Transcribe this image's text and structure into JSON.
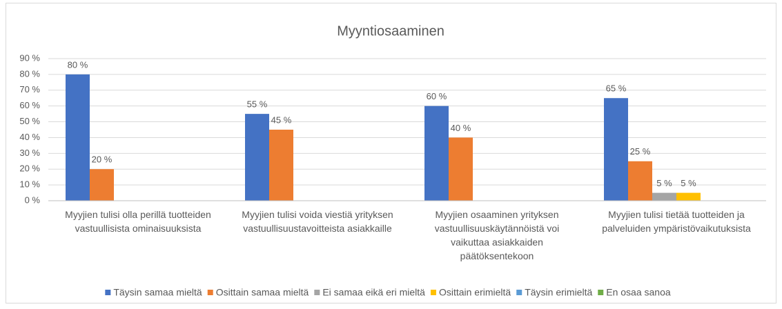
{
  "chart_data": {
    "type": "bar",
    "title": "Myyntiosaaminen",
    "categories": [
      "Myyjien tulisi olla perillä tuotteiden vastuullisista ominaisuuksista",
      "Myyjien tulisi voida viestiä yrityksen vastuullisuustavoitteista asiakkaille",
      "Myyjien osaaminen yrityksen vastuullisuuskäytännöistä voi vaikuttaa asiakkaiden päätöksentekoon",
      "Myyjien tulisi tietää tuotteiden ja palveluiden ympäristövaikutuksista"
    ],
    "series": [
      {
        "name": "Täysin samaa mieltä",
        "color": "#4472c4",
        "values": [
          80,
          55,
          60,
          65
        ],
        "value_labels": [
          "80 %",
          "55 %",
          "60 %",
          "65 %"
        ]
      },
      {
        "name": "Osittain samaa mieltä",
        "color": "#ed7d31",
        "values": [
          20,
          45,
          40,
          25
        ],
        "value_labels": [
          "20 %",
          "45 %",
          "40 %",
          "25 %"
        ]
      },
      {
        "name": "Ei samaa eikä eri mieltä",
        "color": "#a5a5a5",
        "values": [
          0,
          0,
          0,
          5
        ],
        "value_labels": [
          null,
          null,
          null,
          "5 %"
        ]
      },
      {
        "name": "Osittain erimieltä",
        "color": "#ffc000",
        "values": [
          0,
          0,
          0,
          5
        ],
        "value_labels": [
          null,
          null,
          null,
          "5 %"
        ]
      },
      {
        "name": "Täysin erimieltä",
        "color": "#5b9bd5",
        "values": [
          0,
          0,
          0,
          0
        ],
        "value_labels": [
          null,
          null,
          null,
          null
        ]
      },
      {
        "name": "En osaa sanoa",
        "color": "#70ad47",
        "values": [
          0,
          0,
          0,
          0
        ],
        "value_labels": [
          null,
          null,
          null,
          null
        ]
      }
    ],
    "ylim": [
      0,
      90
    ],
    "yticks": [
      {
        "value": 0,
        "label": "0 %"
      },
      {
        "value": 10,
        "label": "10 %"
      },
      {
        "value": 20,
        "label": "20 %"
      },
      {
        "value": 30,
        "label": "30 %"
      },
      {
        "value": 40,
        "label": "40 %"
      },
      {
        "value": 50,
        "label": "50 %"
      },
      {
        "value": 60,
        "label": "60 %"
      },
      {
        "value": 70,
        "label": "70 %"
      },
      {
        "value": 80,
        "label": "80 %"
      },
      {
        "value": 90,
        "label": "90 %"
      }
    ],
    "grid": true,
    "legend": "bottom"
  }
}
